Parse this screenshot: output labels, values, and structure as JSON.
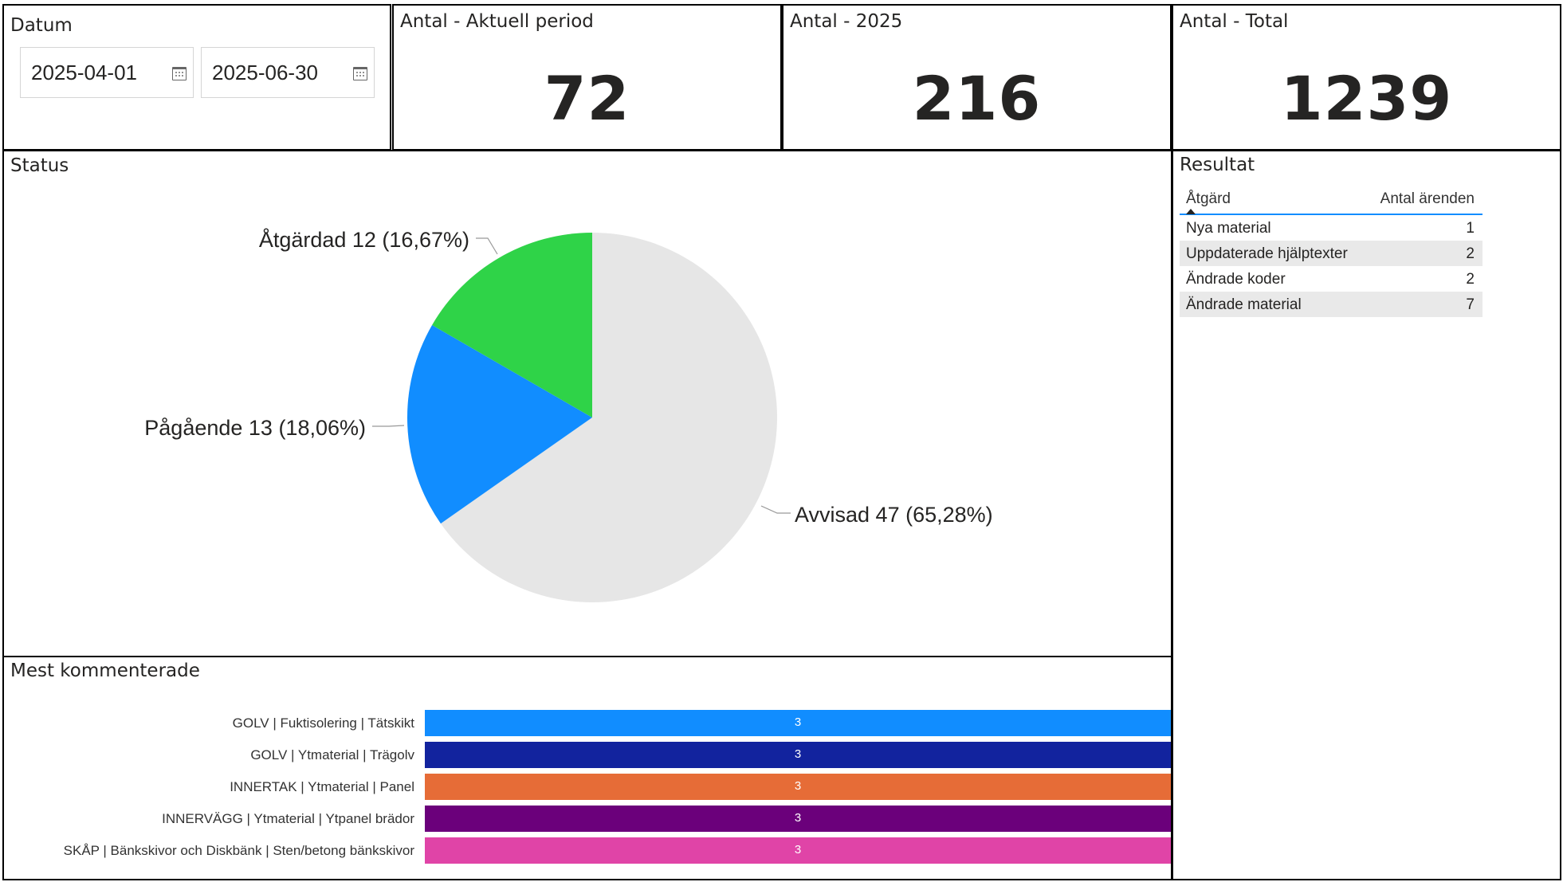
{
  "datum": {
    "title": "Datum",
    "start_date": "2025-04-01",
    "end_date": "2025-06-30",
    "calendar_icon": "calendar-icon"
  },
  "kpis": [
    {
      "title": "Antal - Aktuell period",
      "value": "72"
    },
    {
      "title": "Antal - 2025",
      "value": "216"
    },
    {
      "title": "Antal - Total",
      "value": "1239"
    }
  ],
  "status": {
    "title": "Status",
    "labels": {
      "atgardad": "Åtgärdad 12 (16,67%)",
      "pagaende": "Pågående 13 (18,06%)",
      "avvisad": "Avvisad 47 (65,28%)"
    }
  },
  "resultat": {
    "title": "Resultat",
    "columns": [
      "Åtgärd",
      "Antal ärenden"
    ],
    "rows": [
      {
        "atgard": "Nya material",
        "antal": "1"
      },
      {
        "atgard": "Uppdaterade hjälptexter",
        "antal": "2"
      },
      {
        "atgard": "Ändrade koder",
        "antal": "2"
      },
      {
        "atgard": "Ändrade material",
        "antal": "7"
      }
    ]
  },
  "mest": {
    "title": "Mest kommenterade",
    "labels": [
      "GOLV | Fuktisolering | Tätskikt",
      "GOLV | Ytmaterial | Trägolv",
      "INNERTAK | Ytmaterial | Panel",
      "INNERVÄGG | Ytmaterial | Ytpanel brädor",
      "SKÅP | Bänkskivor och Diskbänk | Sten/betong bänkskivor"
    ],
    "values": [
      "3",
      "3",
      "3",
      "3",
      "3"
    ]
  },
  "chart_data": [
    {
      "type": "pie",
      "title": "Status",
      "categories": [
        "Avvisad",
        "Pågående",
        "Åtgärdad"
      ],
      "values": [
        47,
        13,
        12
      ],
      "percentages": [
        65.28,
        18.06,
        16.67
      ],
      "colors": [
        "#e6e6e6",
        "#118dff",
        "#2fd348"
      ]
    },
    {
      "type": "bar",
      "title": "Mest kommenterade",
      "orientation": "horizontal",
      "categories": [
        "GOLV | Fuktisolering | Tätskikt",
        "GOLV | Ytmaterial | Trägolv",
        "INNERTAK | Ytmaterial | Panel",
        "INNERVÄGG | Ytmaterial | Ytpanel brädor",
        "SKÅP | Bänkskivor och Diskbänk | Sten/betong bänkskivor"
      ],
      "values": [
        3,
        3,
        3,
        3,
        3
      ],
      "colors": [
        "#118dff",
        "#12239e",
        "#e66c37",
        "#6b007b",
        "#e044a7"
      ]
    }
  ]
}
